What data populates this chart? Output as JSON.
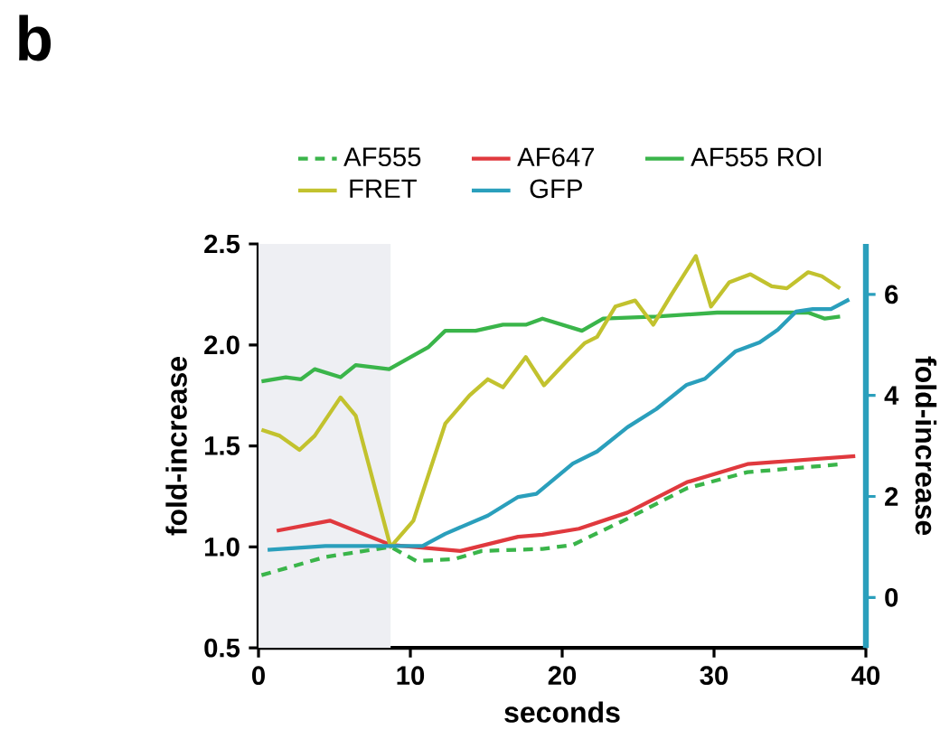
{
  "chart_data": {
    "type": "line",
    "title": "b",
    "xlabel": "seconds",
    "ylabel": "fold-increase",
    "y2label": "fold-increase",
    "xlim": [
      0,
      40
    ],
    "xticks": [
      0,
      10,
      20,
      30,
      40
    ],
    "ylim": [
      0.5,
      2.5
    ],
    "yticks": [
      {
        "value": 0.5,
        "label": "0.5"
      },
      {
        "value": 1.0,
        "label": "1.0"
      },
      {
        "value": 1.5,
        "label": "1.5"
      },
      {
        "value": 2.0,
        "label": "2.0"
      },
      {
        "value": 2.5,
        "label": "2.5"
      }
    ],
    "y2lim": [
      -1,
      7
    ],
    "y2ticks": [
      0,
      2,
      4,
      6
    ],
    "legend": "top",
    "grid": false,
    "marker": "none",
    "bands": [
      {
        "axis": "x",
        "from": 0,
        "to": 8.7,
        "color": "#eeeff3"
      }
    ],
    "series": [
      {
        "name": "AF555",
        "color": "#3ab54a",
        "line_style": "dashed",
        "x": [
          0.2,
          4.4,
          8.7,
          10.4,
          12.9,
          14.7,
          18.7,
          20.7,
          24.3,
          28.2,
          32.2,
          38.5
        ],
        "values": [
          0.86,
          0.95,
          1.0,
          0.93,
          0.94,
          0.98,
          0.99,
          1.01,
          1.14,
          1.29,
          1.37,
          1.41
        ]
      },
      {
        "name": "AF647",
        "color": "#e0393e",
        "x": [
          1.2,
          4.7,
          8.7,
          13.3,
          17.1,
          18.7,
          21.1,
          24.3,
          28.2,
          32.2,
          39.3
        ],
        "values": [
          1.08,
          1.13,
          1.01,
          0.98,
          1.05,
          1.06,
          1.09,
          1.17,
          1.32,
          1.41,
          1.45
        ]
      },
      {
        "name": "AF555 ROI",
        "color": "#3ab54a",
        "x": [
          0.2,
          1.8,
          2.8,
          3.7,
          5.4,
          6.4,
          8.6,
          11.2,
          12.3,
          14.3,
          16.1,
          17.6,
          18.7,
          21.3,
          22.7,
          26.2,
          30.2,
          33.0,
          36.2,
          37.3,
          38.3
        ],
        "values": [
          1.82,
          1.84,
          1.83,
          1.88,
          1.84,
          1.9,
          1.88,
          1.99,
          2.07,
          2.07,
          2.1,
          2.1,
          2.13,
          2.07,
          2.13,
          2.14,
          2.16,
          2.16,
          2.16,
          2.13,
          2.14
        ]
      },
      {
        "name": "FRET",
        "color": "#c2c22e",
        "x": [
          0.2,
          1.4,
          2.7,
          3.7,
          5.4,
          6.4,
          8.7,
          10.2,
          12.3,
          13.9,
          15.1,
          16.1,
          17.6,
          18.8,
          20.3,
          21.5,
          22.3,
          23.5,
          24.8,
          26.0,
          27.2,
          28.8,
          29.8,
          31.0,
          32.4,
          33.8,
          34.8,
          36.2,
          37.1,
          38.3
        ],
        "values": [
          1.58,
          1.55,
          1.48,
          1.55,
          1.74,
          1.65,
          1.0,
          1.13,
          1.61,
          1.75,
          1.83,
          1.79,
          1.94,
          1.8,
          1.92,
          2.01,
          2.04,
          2.19,
          2.22,
          2.1,
          2.25,
          2.44,
          2.19,
          2.31,
          2.35,
          2.29,
          2.28,
          2.36,
          2.34,
          2.28
        ]
      },
      {
        "name": "GFP",
        "color": "#2a9fbc",
        "axis": "y2",
        "x": [
          0.6,
          4.4,
          8.7,
          10.8,
          12.3,
          15.1,
          17.1,
          18.3,
          20.7,
          22.3,
          24.3,
          26.2,
          28.2,
          29.4,
          31.4,
          33.0,
          34.2,
          35.4,
          36.5,
          37.7,
          38.9
        ],
        "values": [
          0.94,
          1.02,
          1.02,
          1.02,
          1.26,
          1.62,
          1.99,
          2.05,
          2.65,
          2.89,
          3.37,
          3.73,
          4.21,
          4.33,
          4.87,
          5.05,
          5.3,
          5.66,
          5.71,
          5.71,
          5.9
        ]
      }
    ]
  }
}
